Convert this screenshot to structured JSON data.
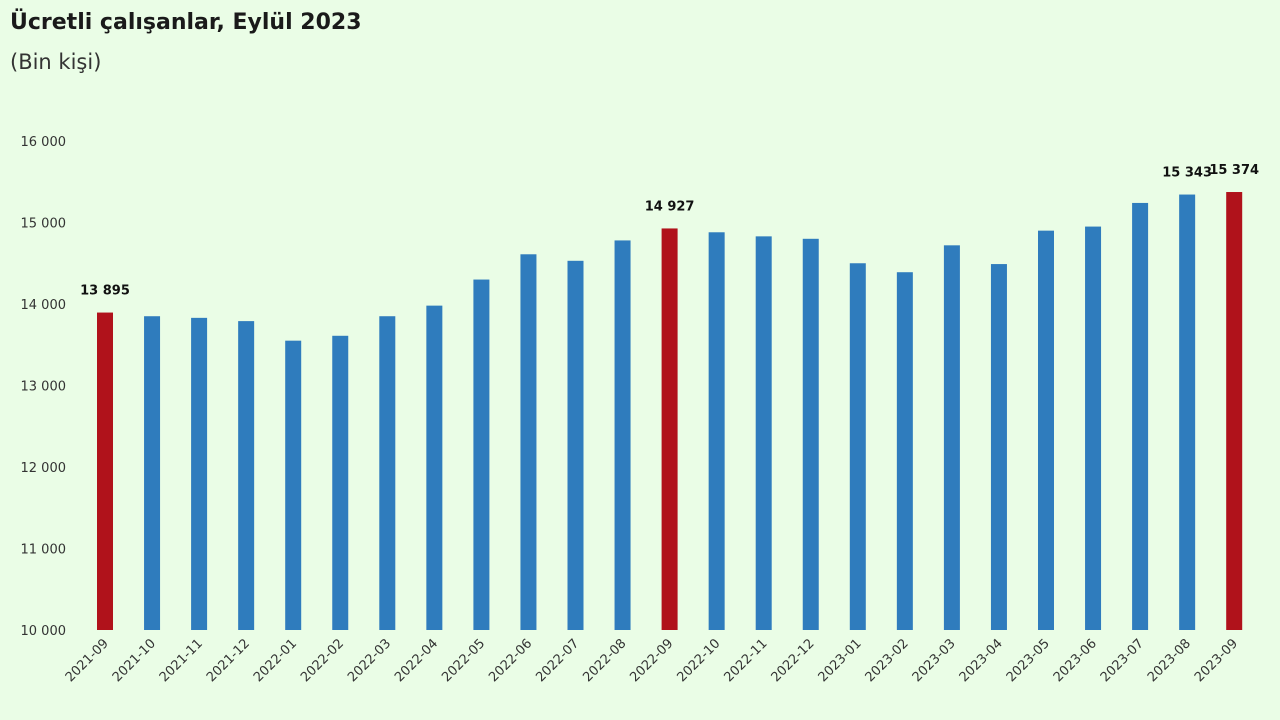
{
  "chart_title": "Ücretli çalışanlar, Eylül 2023",
  "chart_subtitle": "(Bin kişi)",
  "chart_data": {
    "type": "bar",
    "title": "Ücretli çalışanlar, Eylül 2023",
    "subtitle": "(Bin kişi)",
    "xlabel": "",
    "ylabel": "",
    "ylim": [
      10000,
      16000
    ],
    "yticks": [
      10000,
      11000,
      12000,
      13000,
      14000,
      15000,
      16000
    ],
    "ytick_labels": [
      "10 000",
      "11 000",
      "12 000",
      "13 000",
      "14 000",
      "15 000",
      "16 000"
    ],
    "grid": false,
    "categories": [
      "2021-09",
      "2021-10",
      "2021-11",
      "2021-12",
      "2022-01",
      "2022-02",
      "2022-03",
      "2022-04",
      "2022-05",
      "2022-06",
      "2022-07",
      "2022-08",
      "2022-09",
      "2022-10",
      "2022-11",
      "2022-12",
      "2023-01",
      "2023-02",
      "2023-03",
      "2023-04",
      "2023-05",
      "2023-06",
      "2023-07",
      "2023-08",
      "2023-09"
    ],
    "values": [
      13895,
      13850,
      13830,
      13790,
      13550,
      13610,
      13850,
      13980,
      14300,
      14610,
      14530,
      14780,
      14927,
      14880,
      14830,
      14800,
      14500,
      14390,
      14720,
      14490,
      14900,
      14950,
      15240,
      15343,
      15374
    ],
    "highlight": [
      true,
      false,
      false,
      false,
      false,
      false,
      false,
      false,
      false,
      false,
      false,
      false,
      true,
      false,
      false,
      false,
      false,
      false,
      false,
      false,
      false,
      false,
      false,
      false,
      true
    ],
    "data_labels": {
      "0": "13 895",
      "12": "14 927",
      "23": "15 343",
      "24": "15 374"
    },
    "colors": {
      "default": "#2f7cbd",
      "highlight": "#b0121b"
    }
  }
}
